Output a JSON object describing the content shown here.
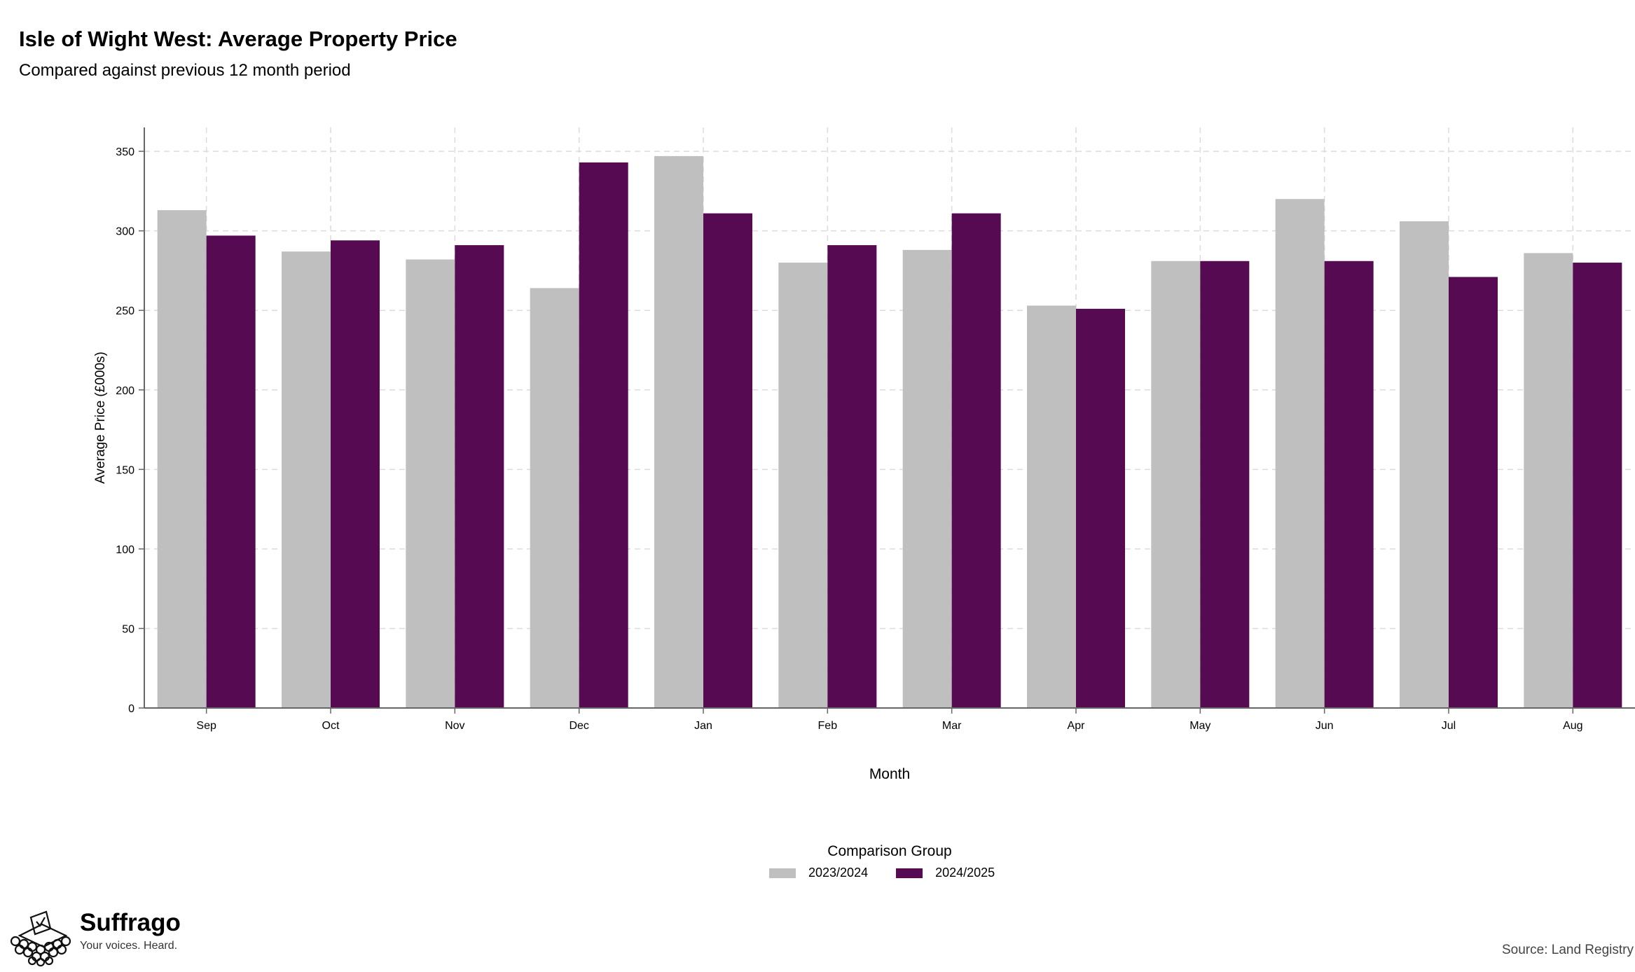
{
  "title": "Isle of Wight West: Average Property Price",
  "subtitle": "Compared against previous 12 month period",
  "chart_data": {
    "type": "bar",
    "title": "Isle of Wight West: Average Property Price",
    "subtitle": "Compared against previous 12 month period",
    "xlabel": "Month",
    "ylabel": "Average Price (£000s)",
    "ylim": [
      0,
      365
    ],
    "yticks": [
      0,
      50,
      100,
      150,
      200,
      250,
      300,
      350
    ],
    "grid": true,
    "legend_placement": "bottom",
    "legend_title": "Comparison Group",
    "categories": [
      "Sep",
      "Oct",
      "Nov",
      "Dec",
      "Jan",
      "Feb",
      "Mar",
      "Apr",
      "May",
      "Jun",
      "Jul",
      "Aug"
    ],
    "series": [
      {
        "name": "2023/2024",
        "color": "#bfbfbf",
        "values": [
          313,
          287,
          282,
          264,
          347,
          280,
          288,
          253,
          281,
          320,
          306,
          286
        ]
      },
      {
        "name": "2024/2025",
        "color": "#560a52",
        "values": [
          297,
          294,
          291,
          343,
          311,
          291,
          311,
          251,
          281,
          281,
          271,
          280
        ]
      }
    ]
  },
  "legend": {
    "title": "Comparison Group",
    "items": [
      {
        "label": "2023/2024",
        "color": "#bfbfbf"
      },
      {
        "label": "2024/2025",
        "color": "#560a52"
      }
    ]
  },
  "branding": {
    "name": "Suffrago",
    "tagline": "Your voices. Heard.",
    "icon": "ballot-box-icon"
  },
  "source": "Source: Land Registry"
}
